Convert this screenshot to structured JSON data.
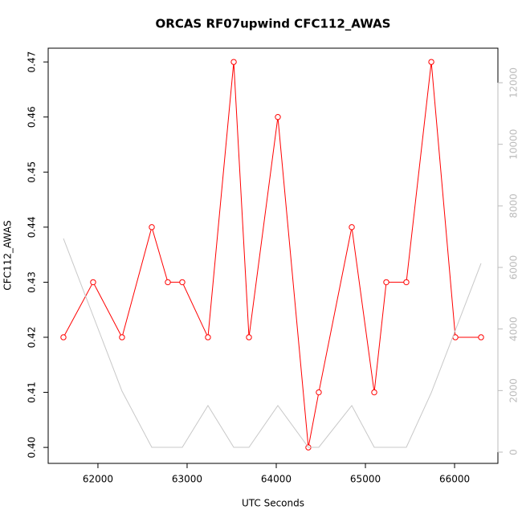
{
  "chart_data": {
    "type": "line",
    "title": "ORCAS RF07upwind CFC112_AWAS",
    "x_label": "UTC Seconds",
    "y_label": "CFC112_AWAS",
    "xlim": [
      61442,
      66486
    ],
    "xticks": [
      62000,
      63000,
      64000,
      65000,
      66000
    ],
    "ylim": [
      0.3971,
      0.4725
    ],
    "yticks": [
      {
        "value": 0.4,
        "label": "0.40"
      },
      {
        "value": 0.41,
        "label": "0.41"
      },
      {
        "value": 0.42,
        "label": "0.42"
      },
      {
        "value": 0.43,
        "label": "0.43"
      },
      {
        "value": 0.44,
        "label": "0.44"
      },
      {
        "value": 0.45,
        "label": "0.45"
      },
      {
        "value": 0.46,
        "label": "0.46"
      },
      {
        "value": 0.47,
        "label": "0.47"
      }
    ],
    "y2lim": [
      -365,
      13122
    ],
    "y2ticks": [
      0,
      2000,
      4000,
      6000,
      8000,
      10000,
      12000
    ],
    "series": [
      {
        "color": "#ff0000",
        "markers": true,
        "x": [
          61613,
          61946,
          62270,
          62604,
          62784,
          62946,
          63234,
          63523,
          63694,
          64018,
          64360,
          64477,
          64847,
          65099,
          65234,
          65459,
          65739,
          66009,
          66297
        ],
        "values": [
          0.42,
          0.43,
          0.42,
          0.44,
          0.43,
          0.43,
          0.42,
          0.47,
          0.42,
          0.46,
          0.4,
          0.41,
          0.44,
          0.41,
          0.43,
          0.43,
          0.47,
          0.42,
          0.42
        ]
      },
      {
        "color": "#c8c8c8",
        "axis": "y2",
        "markers": false,
        "x": [
          61613,
          62270,
          62604,
          62946,
          63234,
          63523,
          63694,
          64018,
          64360,
          64477,
          64847,
          65099,
          65459,
          65739,
          66297
        ],
        "values": [
          6940,
          1983,
          157,
          157,
          1513,
          157,
          157,
          1513,
          157,
          157,
          1513,
          157,
          157,
          1931,
          6131
        ]
      }
    ]
  }
}
